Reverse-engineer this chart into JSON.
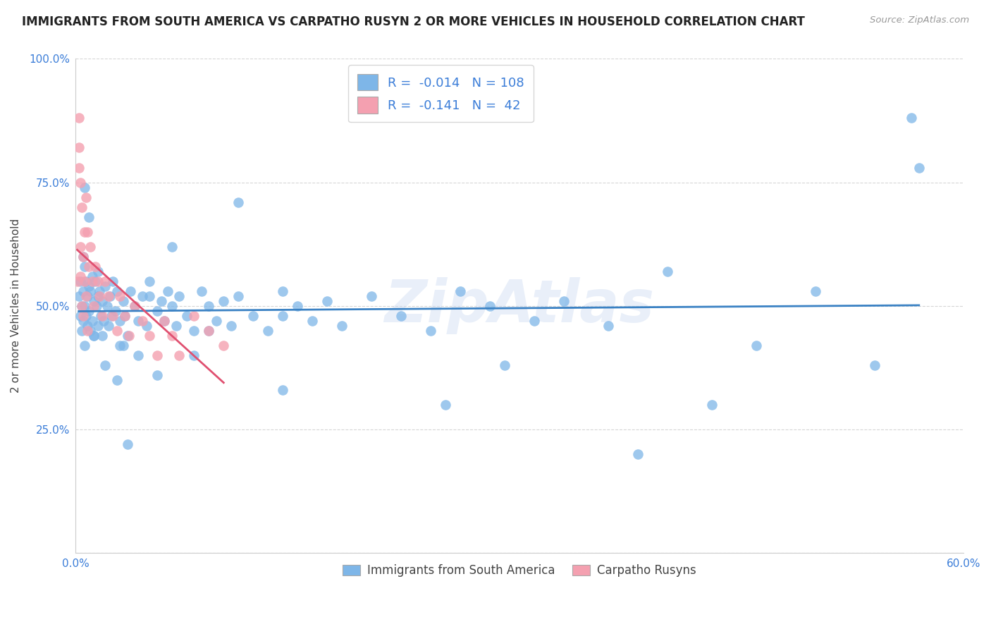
{
  "title": "IMMIGRANTS FROM SOUTH AMERICA VS CARPATHO RUSYN 2 OR MORE VEHICLES IN HOUSEHOLD CORRELATION CHART",
  "source": "Source: ZipAtlas.com",
  "ylabel": "2 or more Vehicles in Household",
  "xlim": [
    0.0,
    0.6
  ],
  "ylim": [
    0.0,
    1.0
  ],
  "blue_R": -0.014,
  "blue_N": 108,
  "pink_R": -0.141,
  "pink_N": 42,
  "blue_color": "#7EB6E8",
  "pink_color": "#F4A0B0",
  "blue_line_color": "#3B82C4",
  "pink_line_color": "#E05070",
  "watermark": "ZipAtlas",
  "blue_scatter_x": [
    0.002,
    0.003,
    0.003,
    0.004,
    0.004,
    0.005,
    0.005,
    0.005,
    0.006,
    0.006,
    0.006,
    0.007,
    0.007,
    0.008,
    0.008,
    0.009,
    0.009,
    0.01,
    0.01,
    0.011,
    0.011,
    0.012,
    0.012,
    0.013,
    0.014,
    0.015,
    0.015,
    0.016,
    0.017,
    0.018,
    0.019,
    0.02,
    0.021,
    0.022,
    0.023,
    0.024,
    0.025,
    0.027,
    0.028,
    0.03,
    0.032,
    0.033,
    0.035,
    0.037,
    0.04,
    0.042,
    0.045,
    0.048,
    0.05,
    0.055,
    0.058,
    0.06,
    0.062,
    0.065,
    0.068,
    0.07,
    0.075,
    0.08,
    0.085,
    0.09,
    0.095,
    0.1,
    0.105,
    0.11,
    0.12,
    0.13,
    0.14,
    0.15,
    0.16,
    0.17,
    0.18,
    0.2,
    0.22,
    0.24,
    0.26,
    0.28,
    0.31,
    0.33,
    0.36,
    0.4,
    0.43,
    0.46,
    0.5,
    0.54,
    0.565,
    0.57,
    0.035,
    0.042,
    0.028,
    0.018,
    0.015,
    0.009,
    0.006,
    0.055,
    0.08,
    0.11,
    0.065,
    0.03,
    0.14,
    0.25,
    0.38,
    0.29,
    0.14,
    0.09,
    0.05,
    0.032,
    0.02,
    0.012
  ],
  "blue_scatter_y": [
    0.52,
    0.48,
    0.55,
    0.5,
    0.45,
    0.53,
    0.47,
    0.6,
    0.5,
    0.42,
    0.58,
    0.55,
    0.48,
    0.52,
    0.46,
    0.54,
    0.49,
    0.53,
    0.45,
    0.56,
    0.47,
    0.51,
    0.44,
    0.55,
    0.5,
    0.52,
    0.46,
    0.53,
    0.48,
    0.51,
    0.47,
    0.54,
    0.5,
    0.46,
    0.52,
    0.48,
    0.55,
    0.49,
    0.53,
    0.47,
    0.51,
    0.48,
    0.44,
    0.53,
    0.5,
    0.47,
    0.52,
    0.46,
    0.55,
    0.49,
    0.51,
    0.47,
    0.53,
    0.5,
    0.46,
    0.52,
    0.48,
    0.45,
    0.53,
    0.5,
    0.47,
    0.51,
    0.46,
    0.52,
    0.48,
    0.45,
    0.53,
    0.5,
    0.47,
    0.51,
    0.46,
    0.52,
    0.48,
    0.45,
    0.53,
    0.5,
    0.47,
    0.51,
    0.46,
    0.57,
    0.3,
    0.42,
    0.53,
    0.38,
    0.88,
    0.78,
    0.22,
    0.4,
    0.35,
    0.44,
    0.57,
    0.68,
    0.74,
    0.36,
    0.4,
    0.71,
    0.62,
    0.42,
    0.48,
    0.3,
    0.2,
    0.38,
    0.33,
    0.45,
    0.52,
    0.42,
    0.38,
    0.44
  ],
  "pink_scatter_x": [
    0.001,
    0.002,
    0.002,
    0.003,
    0.003,
    0.004,
    0.004,
    0.005,
    0.005,
    0.006,
    0.006,
    0.007,
    0.007,
    0.008,
    0.008,
    0.009,
    0.01,
    0.011,
    0.012,
    0.013,
    0.015,
    0.016,
    0.018,
    0.02,
    0.022,
    0.025,
    0.028,
    0.03,
    0.033,
    0.036,
    0.04,
    0.045,
    0.05,
    0.055,
    0.06,
    0.065,
    0.07,
    0.08,
    0.09,
    0.1,
    0.002,
    0.003
  ],
  "pink_scatter_y": [
    0.55,
    0.82,
    0.78,
    0.62,
    0.56,
    0.7,
    0.5,
    0.6,
    0.48,
    0.65,
    0.55,
    0.72,
    0.52,
    0.65,
    0.45,
    0.58,
    0.62,
    0.55,
    0.5,
    0.58,
    0.55,
    0.52,
    0.48,
    0.55,
    0.52,
    0.48,
    0.45,
    0.52,
    0.48,
    0.44,
    0.5,
    0.47,
    0.44,
    0.4,
    0.47,
    0.44,
    0.4,
    0.48,
    0.45,
    0.42,
    0.88,
    0.75
  ]
}
